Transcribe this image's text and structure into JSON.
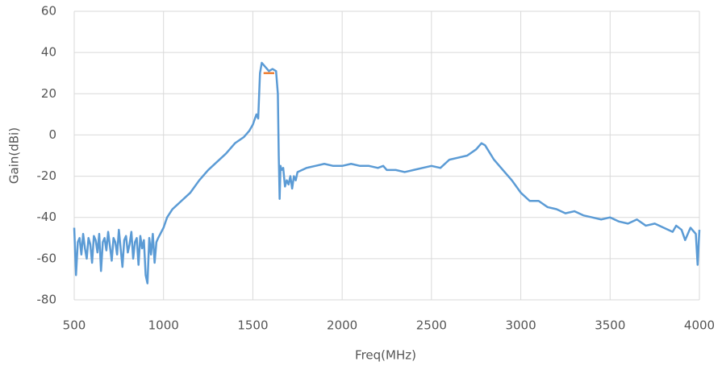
{
  "chart_data": {
    "type": "line",
    "xlabel": "Freq(MHz)",
    "ylabel": "Gain(dBi)",
    "xlim": [
      500,
      4000
    ],
    "xticks": [
      500,
      1000,
      1500,
      2000,
      2500,
      3000,
      3500,
      4000
    ],
    "ylim": [
      -80,
      60
    ],
    "yticks": [
      -80,
      -60,
      -40,
      -20,
      0,
      20,
      40,
      60
    ],
    "grid": true,
    "series": [
      {
        "color": "#5b9bd5",
        "x": [
          500,
          510,
          520,
          530,
          540,
          550,
          560,
          570,
          580,
          590,
          600,
          610,
          620,
          630,
          640,
          650,
          660,
          670,
          680,
          690,
          700,
          710,
          720,
          730,
          740,
          750,
          760,
          770,
          780,
          790,
          800,
          810,
          820,
          830,
          840,
          850,
          860,
          870,
          880,
          890,
          900,
          910,
          920,
          930,
          940,
          950,
          960,
          970,
          1000,
          1020,
          1050,
          1100,
          1150,
          1200,
          1250,
          1300,
          1350,
          1400,
          1450,
          1480,
          1500,
          1520,
          1530,
          1540,
          1550,
          1570,
          1590,
          1610,
          1630,
          1640,
          1645,
          1650,
          1655,
          1660,
          1670,
          1680,
          1690,
          1700,
          1710,
          1720,
          1730,
          1740,
          1750,
          1800,
          1850,
          1900,
          1950,
          2000,
          2050,
          2100,
          2150,
          2200,
          2230,
          2250,
          2300,
          2350,
          2400,
          2450,
          2500,
          2550,
          2600,
          2650,
          2700,
          2750,
          2780,
          2800,
          2850,
          2900,
          2950,
          3000,
          3050,
          3100,
          3150,
          3200,
          3250,
          3300,
          3350,
          3400,
          3450,
          3500,
          3550,
          3600,
          3650,
          3700,
          3750,
          3800,
          3850,
          3870,
          3900,
          3920,
          3950,
          3980,
          3990,
          4000
        ],
        "values": [
          -45,
          -68,
          -52,
          -50,
          -58,
          -48,
          -55,
          -60,
          -50,
          -53,
          -62,
          -49,
          -51,
          -57,
          -48,
          -66,
          -52,
          -50,
          -56,
          -47,
          -54,
          -61,
          -50,
          -52,
          -58,
          -46,
          -55,
          -64,
          -51,
          -49,
          -57,
          -53,
          -47,
          -60,
          -52,
          -50,
          -63,
          -49,
          -55,
          -51,
          -68,
          -72,
          -50,
          -58,
          -48,
          -62,
          -52,
          -50,
          -45,
          -40,
          -36,
          -32,
          -28,
          -22,
          -17,
          -13,
          -9,
          -4,
          -1,
          2,
          5,
          10,
          8,
          30,
          35,
          33,
          31,
          32,
          31,
          20,
          -10,
          -31,
          -15,
          -17,
          -16,
          -25,
          -22,
          -24,
          -20,
          -26,
          -20,
          -22,
          -18,
          -16,
          -15,
          -14,
          -15,
          -15,
          -14,
          -15,
          -15,
          -16,
          -15,
          -17,
          -17,
          -18,
          -17,
          -16,
          -15,
          -16,
          -12,
          -11,
          -10,
          -7,
          -4,
          -5,
          -12,
          -17,
          -22,
          -28,
          -32,
          -32,
          -35,
          -36,
          -38,
          -37,
          -39,
          -40,
          -41,
          -40,
          -42,
          -43,
          -41,
          -44,
          -43,
          -45,
          -47,
          -44,
          -46,
          -51,
          -45,
          -48,
          -63,
          -46
        ]
      },
      {
        "color": "#ed7d31",
        "x": [
          1560,
          1620
        ],
        "values": [
          30,
          30
        ]
      }
    ]
  }
}
